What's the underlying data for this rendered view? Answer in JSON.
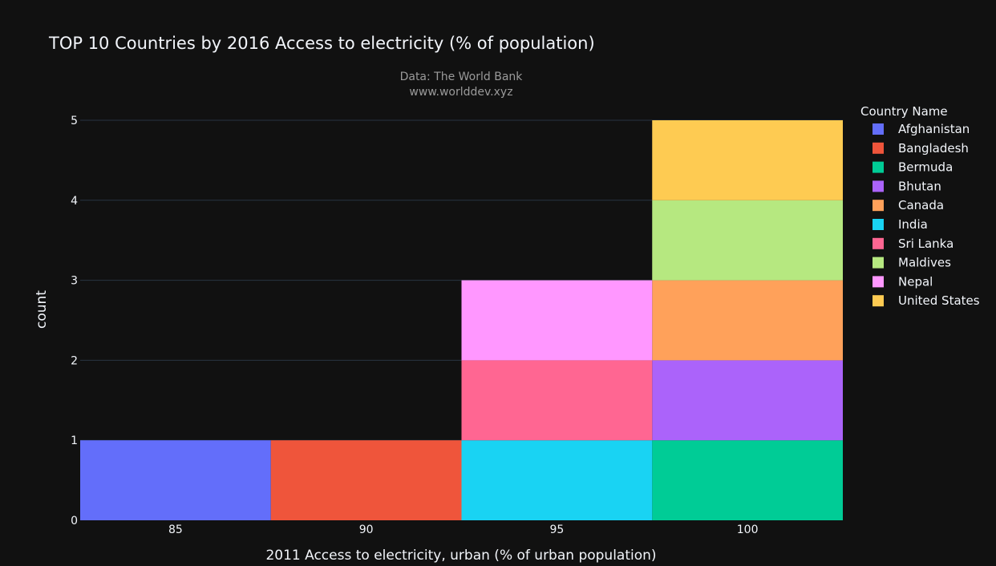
{
  "chart_data": {
    "type": "bar",
    "barmode": "stack",
    "title": "TOP 10 Countries by 2016 Access to electricity (% of population)",
    "annotation_lines": [
      "Data: The World Bank",
      "www.worlddev.xyz"
    ],
    "xlabel": "2011 Access to electricity, urban (% of urban population)",
    "ylabel": "count",
    "categories": [
      85,
      90,
      95,
      100
    ],
    "x_range": [
      82.5,
      102.5
    ],
    "ylim": [
      0,
      5
    ],
    "y_ticks": [
      0,
      1,
      2,
      3,
      4,
      5
    ],
    "grid": true,
    "legend_title": "Country Name",
    "legend_position": "right",
    "series": [
      {
        "name": "Afghanistan",
        "color": "#636efa",
        "values": [
          1,
          0,
          0,
          0
        ]
      },
      {
        "name": "Bangladesh",
        "color": "#ef553b",
        "values": [
          0,
          1,
          0,
          0
        ]
      },
      {
        "name": "Bermuda",
        "color": "#00cc96",
        "values": [
          0,
          0,
          0,
          1
        ]
      },
      {
        "name": "Bhutan",
        "color": "#ab63fa",
        "values": [
          0,
          0,
          0,
          1
        ]
      },
      {
        "name": "Canada",
        "color": "#ffa15a",
        "values": [
          0,
          0,
          0,
          1
        ]
      },
      {
        "name": "India",
        "color": "#19d3f3",
        "values": [
          0,
          0,
          1,
          0
        ]
      },
      {
        "name": "Sri Lanka",
        "color": "#ff6692",
        "values": [
          0,
          0,
          1,
          0
        ]
      },
      {
        "name": "Maldives",
        "color": "#b6e880",
        "values": [
          0,
          0,
          0,
          1
        ]
      },
      {
        "name": "Nepal",
        "color": "#ff97ff",
        "values": [
          0,
          0,
          1,
          0
        ]
      },
      {
        "name": "United States",
        "color": "#fecb52",
        "values": [
          0,
          0,
          0,
          1
        ]
      }
    ]
  }
}
